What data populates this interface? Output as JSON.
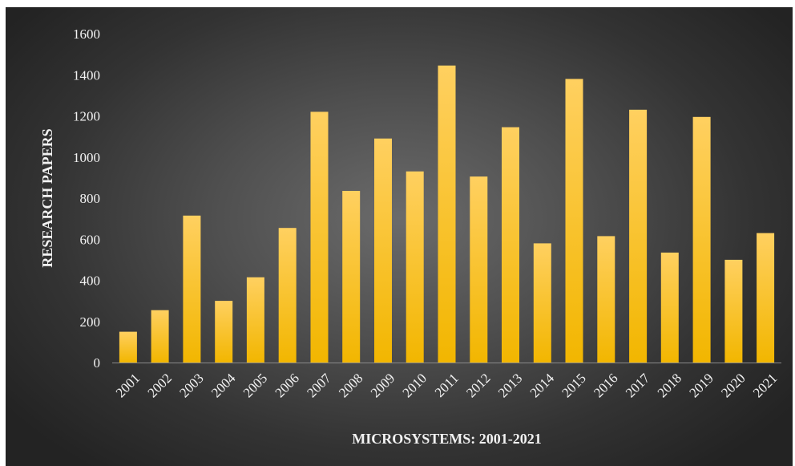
{
  "chart_data": {
    "type": "bar",
    "title": "",
    "xlabel": "MICROSYSTEMS: 2001-2021",
    "ylabel": "RESEARCH PAPERS",
    "categories": [
      "2001",
      "2002",
      "2003",
      "2004",
      "2005",
      "2006",
      "2007",
      "2008",
      "2009",
      "2010",
      "2011",
      "2012",
      "2013",
      "2014",
      "2015",
      "2016",
      "2017",
      "2018",
      "2019",
      "2020",
      "2021"
    ],
    "values": [
      150,
      255,
      715,
      300,
      415,
      655,
      1220,
      835,
      1090,
      930,
      1445,
      905,
      1145,
      580,
      1380,
      615,
      1230,
      535,
      1195,
      500,
      630
    ],
    "ylim": [
      0,
      1600
    ],
    "yticks": [
      0,
      200,
      400,
      600,
      800,
      1000,
      1200,
      1400,
      1600
    ],
    "grid": false,
    "legend": "none",
    "colors": {
      "bar_top": "#ffd060",
      "bar_bottom": "#f2b600",
      "background": "#4f4f4f",
      "text": "#f2f2f2"
    }
  }
}
